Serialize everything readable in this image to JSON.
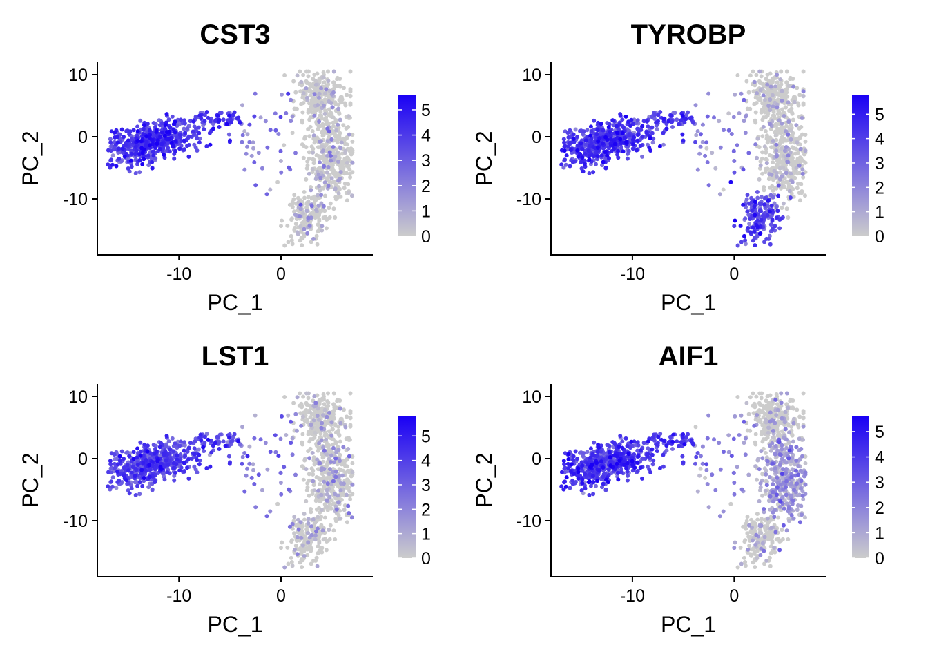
{
  "chart_data": [
    {
      "type": "scatter",
      "title": "CST3",
      "xlabel": "PC_1",
      "ylabel": "PC_2",
      "xlim": [
        -18,
        9
      ],
      "ylim": [
        -19,
        12
      ],
      "xticks": [
        -10,
        0
      ],
      "xtick_labels": [
        "-10",
        "0"
      ],
      "yticks": [
        10,
        0,
        -10
      ],
      "ytick_labels": [
        "10",
        "0",
        "-10"
      ],
      "color_scale": {
        "low": "#cccccc",
        "high": "#1a00f5",
        "min": 0,
        "max": 5.6,
        "ticks": [
          0,
          1,
          2,
          3,
          4,
          5
        ],
        "tick_labels": [
          "0",
          "1",
          "2",
          "3",
          "4",
          "5"
        ]
      },
      "expression": {
        "left_cluster": 3.9,
        "bridge": 2.0,
        "right_top": 0.3,
        "right_mid": 0.6,
        "right_bottom": 0.8
      },
      "grid": false
    },
    {
      "type": "scatter",
      "title": "TYROBP",
      "xlabel": "PC_1",
      "ylabel": "PC_2",
      "xlim": [
        -18,
        9
      ],
      "ylim": [
        -19,
        12
      ],
      "xticks": [
        -10,
        0
      ],
      "xtick_labels": [
        "-10",
        "0"
      ],
      "yticks": [
        10,
        0,
        -10
      ],
      "ytick_labels": [
        "10",
        "0",
        "-10"
      ],
      "color_scale": {
        "low": "#cccccc",
        "high": "#1a00f5",
        "min": 0,
        "max": 5.8,
        "ticks": [
          0,
          1,
          2,
          3,
          4,
          5
        ],
        "tick_labels": [
          "0",
          "1",
          "2",
          "3",
          "4",
          "5"
        ]
      },
      "expression": {
        "left_cluster": 4.0,
        "bridge": 2.0,
        "right_top": 0.4,
        "right_mid": 0.7,
        "right_bottom": 3.6
      },
      "grid": false
    },
    {
      "type": "scatter",
      "title": "LST1",
      "xlabel": "PC_1",
      "ylabel": "PC_2",
      "xlim": [
        -18,
        9
      ],
      "ylim": [
        -19,
        12
      ],
      "xticks": [
        -10,
        0
      ],
      "xtick_labels": [
        "-10",
        "0"
      ],
      "yticks": [
        10,
        0,
        -10
      ],
      "ytick_labels": [
        "10",
        "0",
        "-10"
      ],
      "color_scale": {
        "low": "#cccccc",
        "high": "#1a00f5",
        "min": 0,
        "max": 5.8,
        "ticks": [
          0,
          1,
          2,
          3,
          4,
          5
        ],
        "tick_labels": [
          "0",
          "1",
          "2",
          "3",
          "4",
          "5"
        ]
      },
      "expression": {
        "left_cluster": 3.6,
        "bridge": 2.2,
        "right_top": 0.5,
        "right_mid": 0.9,
        "right_bottom": 0.6
      },
      "grid": false
    },
    {
      "type": "scatter",
      "title": "AIF1",
      "xlabel": "PC_1",
      "ylabel": "PC_2",
      "xlim": [
        -18,
        9
      ],
      "ylim": [
        -19,
        12
      ],
      "xticks": [
        -10,
        0
      ],
      "xtick_labels": [
        "-10",
        "0"
      ],
      "yticks": [
        10,
        0,
        -10
      ],
      "ytick_labels": [
        "10",
        "0",
        "-10"
      ],
      "color_scale": {
        "low": "#cccccc",
        "high": "#1a00f5",
        "min": 0,
        "max": 5.6,
        "ticks": [
          0,
          1,
          2,
          3,
          4,
          5
        ],
        "tick_labels": [
          "0",
          "1",
          "2",
          "3",
          "4",
          "5"
        ]
      },
      "expression": {
        "left_cluster": 3.8,
        "bridge": 2.2,
        "right_top": 0.3,
        "right_mid": 1.0,
        "right_bottom": 0.7
      },
      "grid": false
    }
  ]
}
